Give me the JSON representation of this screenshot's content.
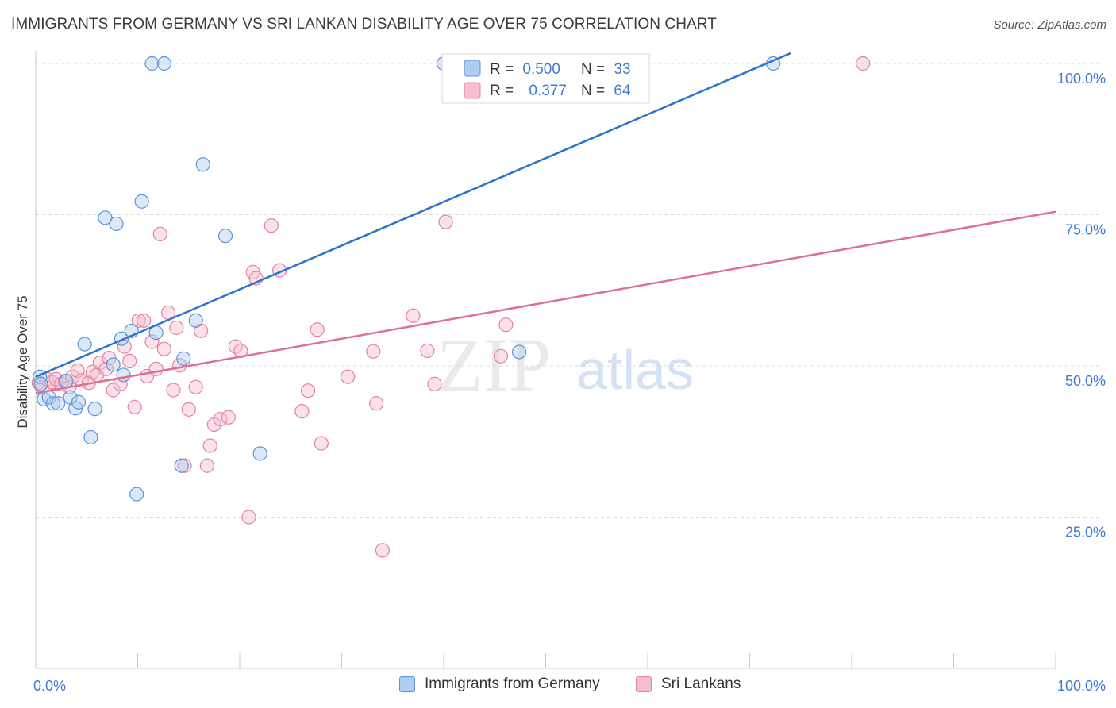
{
  "title": "IMMIGRANTS FROM GERMANY VS SRI LANKAN DISABILITY AGE OVER 75 CORRELATION CHART",
  "source": "Source: ZipAtlas.com",
  "watermark": {
    "zip": "ZIP",
    "atlas": "atlas"
  },
  "colors": {
    "blue_fill": "#aecdf0",
    "blue_stroke": "#5f95d6",
    "blue_line": "#2a73cf",
    "pink_fill": "#f6bfd0",
    "pink_stroke": "#e5839f",
    "pink_line": "#e0708f",
    "axis_label": "#3e7bd1",
    "grid": "#dcdcdc"
  },
  "legend_box": {
    "rows": [
      {
        "r_label": "R = ",
        "r_value": "0.500",
        "n_label": "N = ",
        "n_value": "33",
        "series": "blue"
      },
      {
        "r_label": "R = ",
        "r_value": "0.377",
        "n_label": "N = ",
        "n_value": "64",
        "series": "pink"
      }
    ]
  },
  "legend_bottom": [
    {
      "label": "Immigrants from Germany",
      "series": "blue"
    },
    {
      "label": "Sri Lankans",
      "series": "pink"
    }
  ],
  "chart_data": {
    "type": "scatter",
    "title": "IMMIGRANTS FROM GERMANY VS SRI LANKAN DISABILITY AGE OVER 75 CORRELATION CHART",
    "xlabel": "",
    "ylabel": "Disability Age Over 75",
    "xlim": [
      0,
      100
    ],
    "ylim": [
      0,
      104
    ],
    "x_tick_labels": [
      "0.0%",
      "100.0%"
    ],
    "y_ticks": [
      25,
      50,
      75,
      100
    ],
    "y_tick_labels": [
      "25.0%",
      "50.0%",
      "75.0%",
      "100.0%"
    ],
    "grid": true,
    "legend_position": "top-center",
    "series": [
      {
        "name": "Immigrants from Germany",
        "color": "#aecdf0",
        "r": 0.5,
        "n": 33,
        "trend": {
          "x": [
            0,
            74
          ],
          "y": [
            48.2,
            101.7
          ]
        },
        "points": [
          [
            0.4,
            48.2
          ],
          [
            0.5,
            47.0
          ],
          [
            0.8,
            44.5
          ],
          [
            1.3,
            44.8
          ],
          [
            1.7,
            43.8
          ],
          [
            2.2,
            43.8
          ],
          [
            3.0,
            47.5
          ],
          [
            3.4,
            44.8
          ],
          [
            3.9,
            43.0
          ],
          [
            4.2,
            44.0
          ],
          [
            4.8,
            53.6
          ],
          [
            5.4,
            38.2
          ],
          [
            5.8,
            42.9
          ],
          [
            6.8,
            74.5
          ],
          [
            7.6,
            50.2
          ],
          [
            7.9,
            73.5
          ],
          [
            8.4,
            54.5
          ],
          [
            8.6,
            48.5
          ],
          [
            9.4,
            55.8
          ],
          [
            9.9,
            28.8
          ],
          [
            10.4,
            77.2
          ],
          [
            11.4,
            100.0
          ],
          [
            11.8,
            55.5
          ],
          [
            12.6,
            100.0
          ],
          [
            14.3,
            33.5
          ],
          [
            14.5,
            51.2
          ],
          [
            15.7,
            57.5
          ],
          [
            16.4,
            83.3
          ],
          [
            18.6,
            71.5
          ],
          [
            22.0,
            35.5
          ],
          [
            40.0,
            100.0
          ],
          [
            47.4,
            52.3
          ],
          [
            72.3,
            100.0
          ]
        ]
      },
      {
        "name": "Sri Lankans",
        "color": "#f6bfd0",
        "r": 0.377,
        "n": 64,
        "trend": {
          "x": [
            0,
            100
          ],
          "y": [
            45.5,
            75.5
          ]
        },
        "points": [
          [
            0.3,
            47.2
          ],
          [
            0.6,
            46.5
          ],
          [
            1.1,
            47.8
          ],
          [
            1.6,
            47.3
          ],
          [
            2.0,
            47.8
          ],
          [
            2.5,
            47.0
          ],
          [
            2.9,
            47.5
          ],
          [
            3.3,
            46.5
          ],
          [
            3.6,
            48.2
          ],
          [
            4.1,
            49.2
          ],
          [
            4.5,
            47.6
          ],
          [
            5.2,
            47.2
          ],
          [
            5.6,
            49.0
          ],
          [
            6.0,
            48.5
          ],
          [
            6.3,
            50.5
          ],
          [
            6.9,
            49.5
          ],
          [
            7.2,
            51.3
          ],
          [
            7.6,
            46.0
          ],
          [
            8.3,
            47.0
          ],
          [
            8.7,
            53.2
          ],
          [
            9.2,
            50.8
          ],
          [
            9.7,
            43.2
          ],
          [
            10.1,
            57.5
          ],
          [
            10.6,
            57.5
          ],
          [
            10.9,
            48.3
          ],
          [
            11.4,
            54.0
          ],
          [
            11.8,
            49.5
          ],
          [
            12.2,
            71.8
          ],
          [
            12.6,
            52.8
          ],
          [
            13.0,
            58.8
          ],
          [
            13.5,
            46.0
          ],
          [
            13.8,
            56.3
          ],
          [
            14.1,
            50.1
          ],
          [
            14.6,
            33.5
          ],
          [
            15.0,
            42.8
          ],
          [
            15.7,
            46.5
          ],
          [
            16.2,
            55.8
          ],
          [
            16.8,
            33.5
          ],
          [
            17.1,
            36.8
          ],
          [
            17.5,
            40.3
          ],
          [
            18.1,
            41.2
          ],
          [
            18.9,
            41.5
          ],
          [
            19.6,
            53.2
          ],
          [
            20.1,
            52.5
          ],
          [
            20.9,
            25.0
          ],
          [
            21.3,
            65.5
          ],
          [
            21.6,
            64.5
          ],
          [
            23.1,
            73.2
          ],
          [
            23.9,
            65.8
          ],
          [
            26.1,
            42.5
          ],
          [
            26.7,
            45.9
          ],
          [
            27.6,
            56.0
          ],
          [
            28.0,
            37.2
          ],
          [
            30.6,
            48.2
          ],
          [
            33.1,
            52.4
          ],
          [
            33.4,
            43.8
          ],
          [
            34.0,
            19.5
          ],
          [
            37.0,
            58.3
          ],
          [
            38.4,
            52.5
          ],
          [
            39.1,
            47.0
          ],
          [
            40.2,
            73.8
          ],
          [
            45.6,
            51.6
          ],
          [
            46.1,
            56.8
          ],
          [
            81.1,
            100.0
          ]
        ]
      }
    ]
  }
}
